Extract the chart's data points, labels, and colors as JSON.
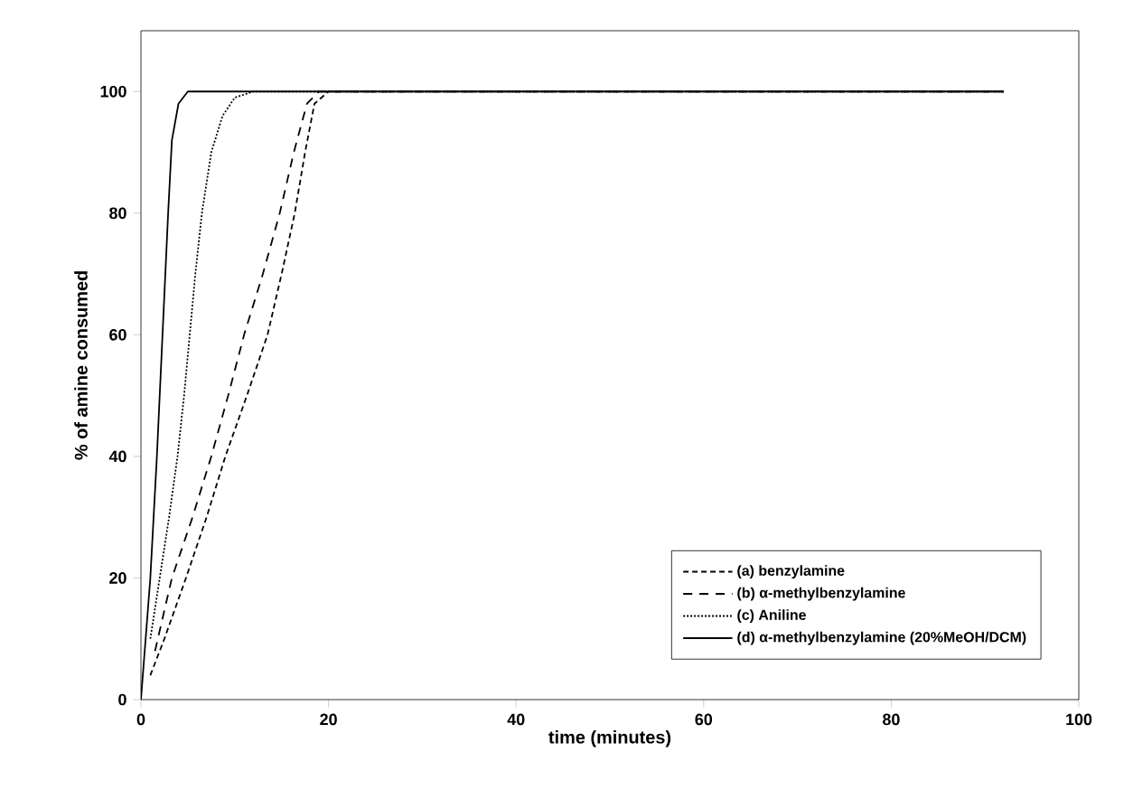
{
  "chart_data": {
    "type": "line",
    "xlabel": "time (minutes)",
    "ylabel": "% of amine consumed",
    "xlim": [
      0,
      100
    ],
    "ylim": [
      0,
      110
    ],
    "xticks": [
      0,
      20,
      40,
      60,
      80,
      100
    ],
    "yticks": [
      0,
      20,
      40,
      60,
      80,
      100
    ],
    "legend": "bottom right",
    "grid": false,
    "marker": "none",
    "series": [
      {
        "name": "(a) benzylamine",
        "color": "#000000",
        "line_style": "dashed",
        "x": [
          1,
          2.5,
          4.8,
          7,
          9,
          11.3,
          13.5,
          15,
          16.4,
          17.5,
          18.5,
          20,
          30,
          92
        ],
        "values": [
          4,
          10,
          20,
          30,
          40,
          50,
          60,
          70,
          80,
          90,
          98,
          100,
          100,
          100
        ]
      },
      {
        "name": "(b) α-methylbenzylamine",
        "color": "#000000",
        "line_style": "dashed",
        "x": [
          1.5,
          3.3,
          5.5,
          7.5,
          9.3,
          11,
          13,
          14.8,
          16.3,
          17.7,
          19,
          30,
          92
        ],
        "values": [
          8,
          20,
          30,
          40,
          50,
          60,
          70,
          80,
          90,
          98,
          100,
          100,
          100
        ]
      },
      {
        "name": "(c) Aniline",
        "color": "#000000",
        "line_style": "dotted",
        "x": [
          1,
          2,
          3,
          3.9,
          4.6,
          5.2,
          5.8,
          6.5,
          7.5,
          8.7,
          10,
          12,
          92
        ],
        "values": [
          10,
          20,
          30,
          40,
          50,
          60,
          70,
          80,
          90,
          96,
          99,
          100,
          100
        ]
      },
      {
        "name": "(d) α-methylbenzylamine (20%MeOH/DCM)",
        "color": "#000000",
        "line_style": "solid",
        "x": [
          0,
          0.5,
          1,
          1.7,
          2.3,
          2.9,
          3.3,
          4,
          5,
          92
        ],
        "values": [
          0,
          10,
          20,
          40,
          60,
          80,
          92,
          98,
          100,
          100
        ]
      }
    ]
  }
}
